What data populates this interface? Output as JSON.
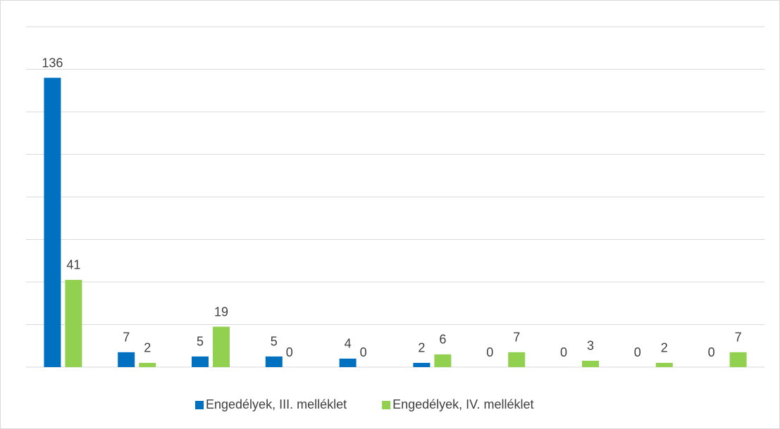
{
  "chart_data": {
    "type": "bar",
    "categories": [
      null,
      null,
      null,
      null,
      null,
      null,
      null,
      null,
      null,
      null
    ],
    "series": [
      {
        "name": "Engedélyek, III. melléklet",
        "color": "#0070c0",
        "values": [
          136,
          7,
          5,
          5,
          4,
          2,
          0,
          0,
          0,
          0
        ]
      },
      {
        "name": "Engedélyek, IV. melléklet",
        "color": "#92d050",
        "values": [
          41,
          2,
          19,
          0,
          0,
          6,
          7,
          3,
          2,
          7
        ]
      }
    ],
    "ylim": [
      0,
      160
    ],
    "yticks": [
      0,
      20,
      40,
      60,
      80,
      100,
      120,
      140,
      160
    ],
    "grid": true,
    "legend": "bottom"
  }
}
